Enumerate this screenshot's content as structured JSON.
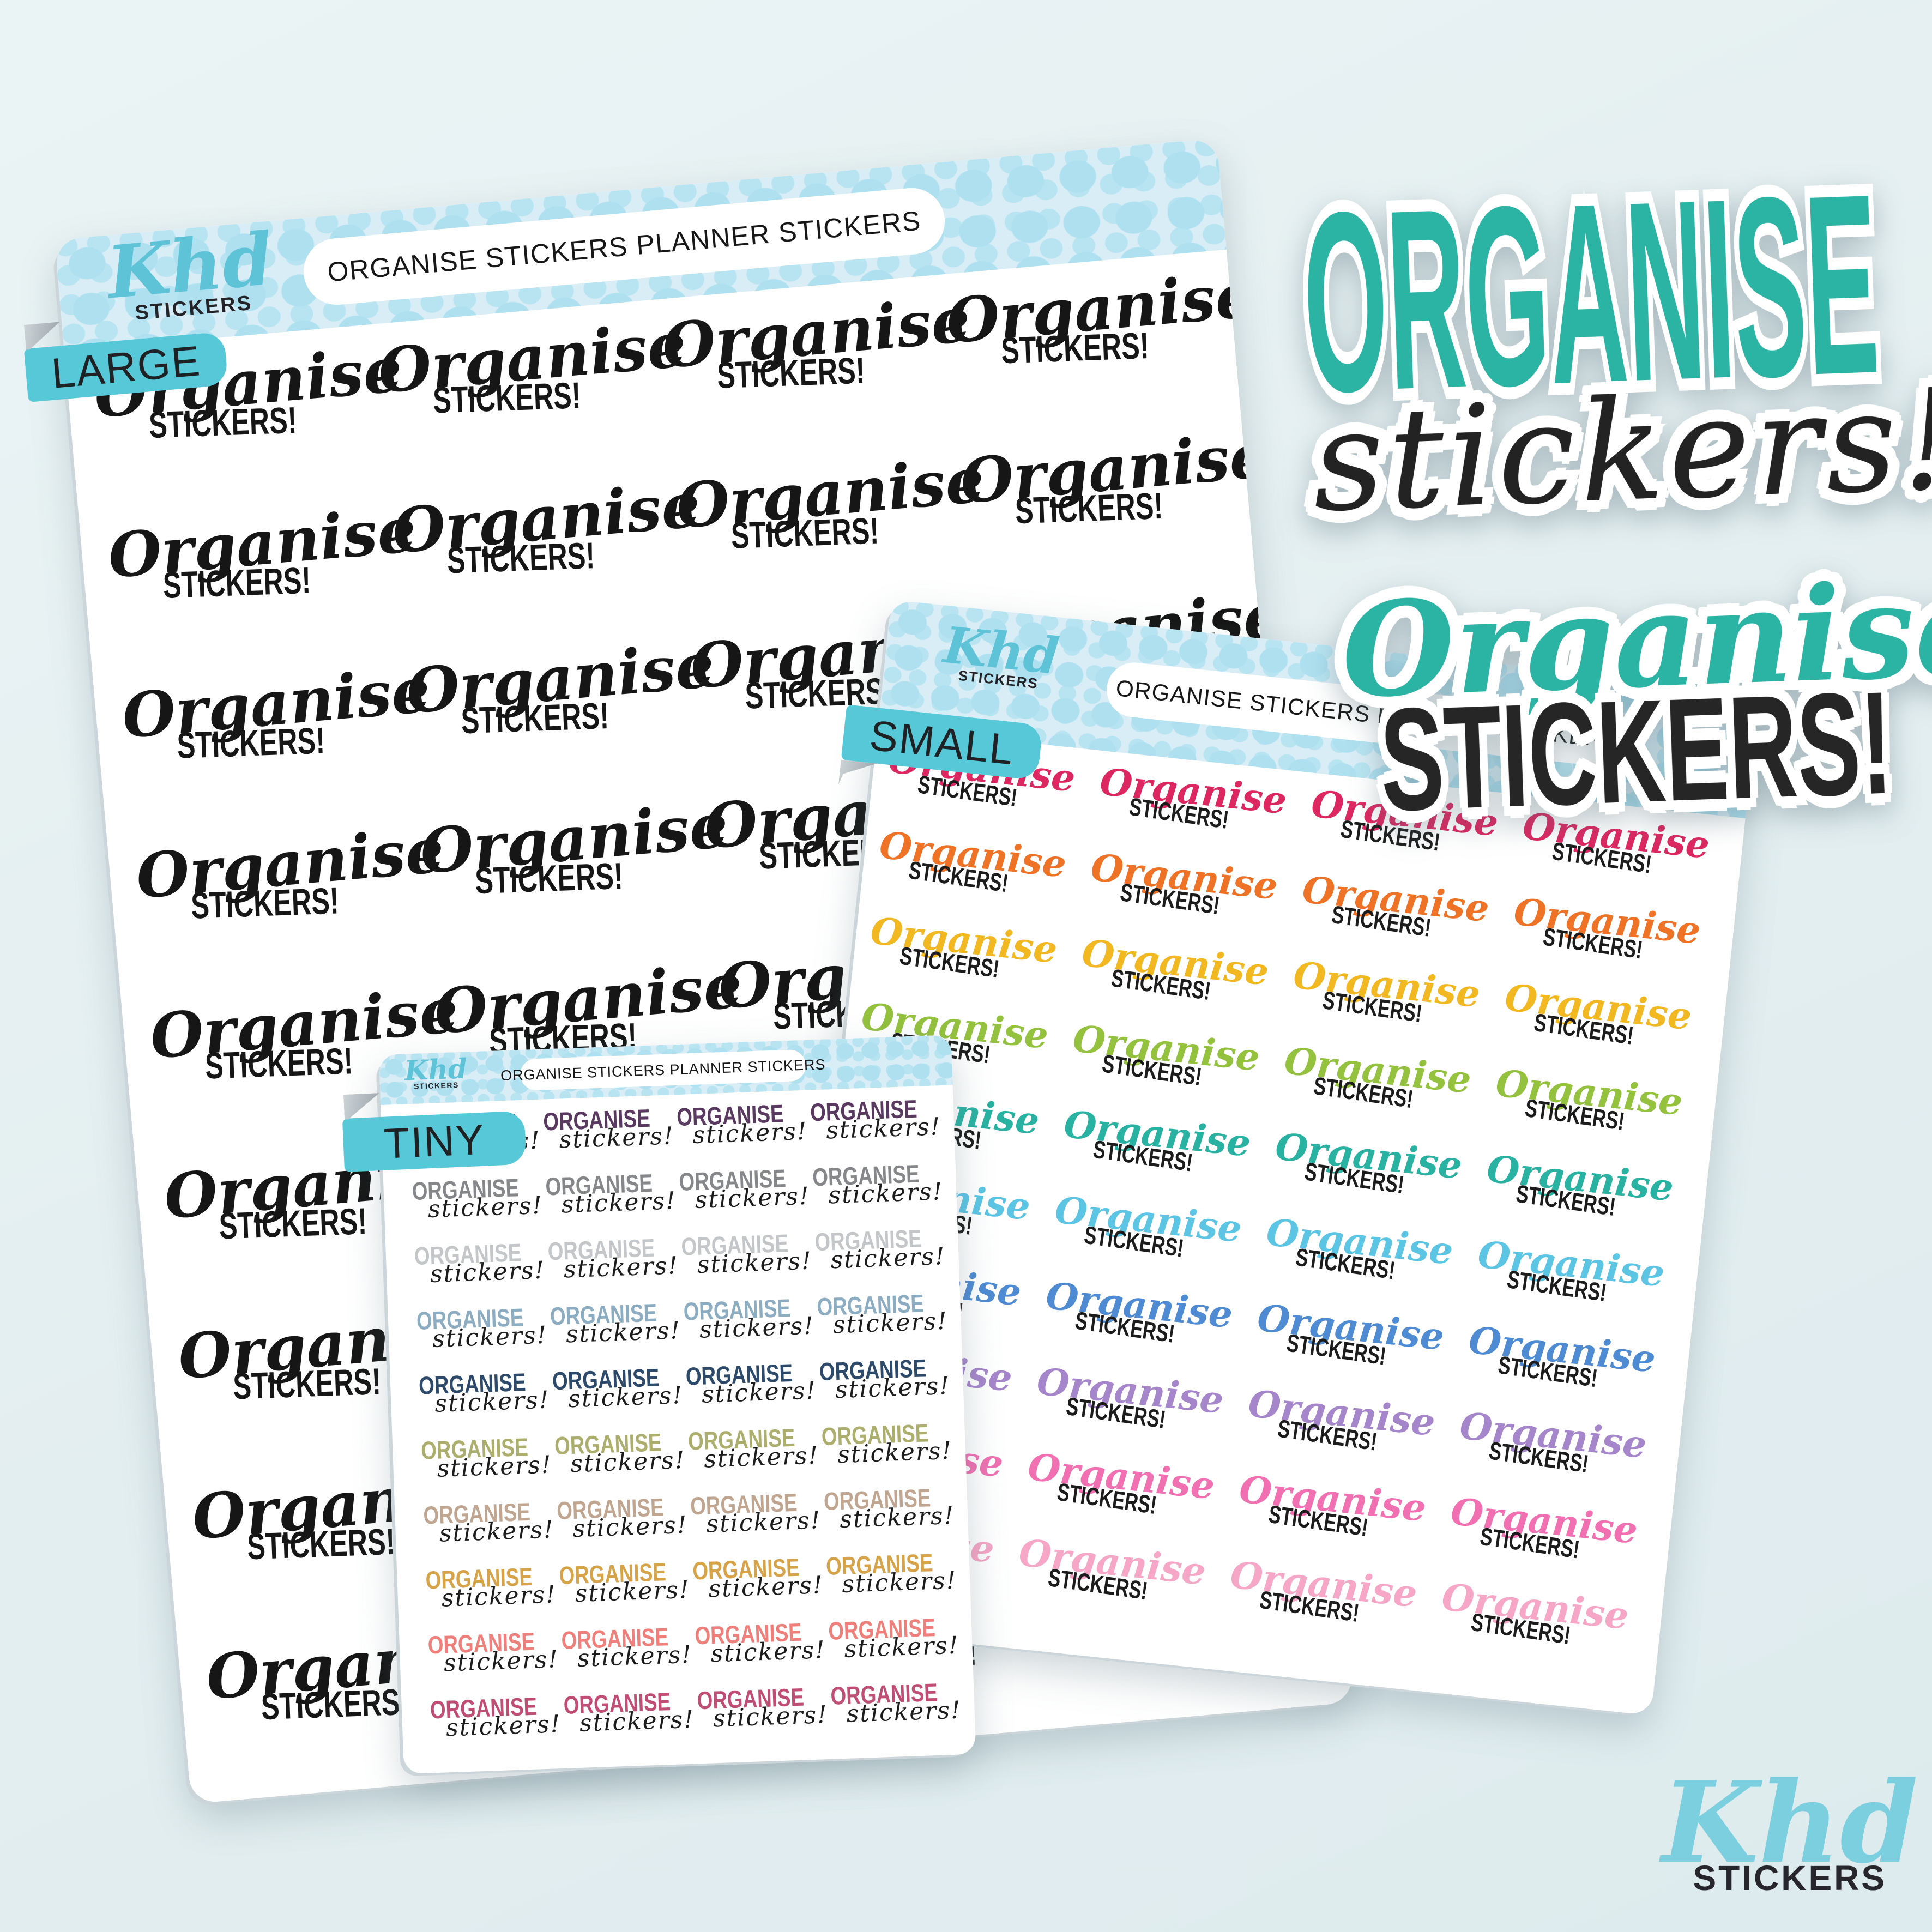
{
  "canvas": {
    "background": "#e3eef0"
  },
  "branding": {
    "script": "Khd",
    "caps": "STICKERS",
    "script_color": "#5fc3d8",
    "caps_color": "#242428"
  },
  "labels": {
    "tab_color": "#57c8d8",
    "tab_text_color": "#1f2224",
    "fold_color": "#a9b1b7"
  },
  "band": {
    "background": "#d8edf6",
    "dot_color": "#aee0f0"
  },
  "sheets": {
    "large": {
      "label": "LARGE",
      "title": "ORGANISE STICKERS PLANNER STICKERS",
      "line1": "Organise",
      "line2": "STICKERS!",
      "style": "script-caps",
      "rows": 9,
      "columns": 4,
      "ink": "#161616"
    },
    "small": {
      "label": "SMALL",
      "title": "ORGANISE STICKERS PLANNER STICKERS",
      "line1": "Organise",
      "line2": "STICKERS!",
      "style": "script-caps",
      "rows": 10,
      "columns": 4,
      "caps_ink": "#1c1c1c",
      "row_colors": [
        "#dc2760",
        "#ee7327",
        "#f2b822",
        "#94c13e",
        "#29b2a2",
        "#5cc5e4",
        "#4f8bd2",
        "#a686ca",
        "#f170b2",
        "#f6a6c6"
      ]
    },
    "tiny": {
      "label": "TINY",
      "title": "ORGANISE STICKERS PLANNER STICKERS",
      "line1": "ORGANISE",
      "line2": "stickers!",
      "style": "caps-script",
      "rows": 10,
      "columns": 4,
      "script_ink": "#1c1c1c",
      "row_colors": [
        "#59395f",
        "#85878a",
        "#c3c7ca",
        "#8cadc1",
        "#2d4a6b",
        "#abae6c",
        "#c0a691",
        "#d6a348",
        "#ee7f7b",
        "#c04e74"
      ]
    }
  },
  "featured": [
    {
      "line1": "ORGANISE",
      "line2": "stickers!",
      "line1_color": "#2bb3a3",
      "line2_color": "#232323"
    },
    {
      "line1": "Organise",
      "line2": "STICKERS!",
      "line1_color": "#2bb3a3",
      "line2_color": "#262626"
    }
  ],
  "footer_logo": {
    "script": "Khd",
    "caps": "STICKERS",
    "script_color": "#7ccfde",
    "caps_color": "#26262c"
  }
}
